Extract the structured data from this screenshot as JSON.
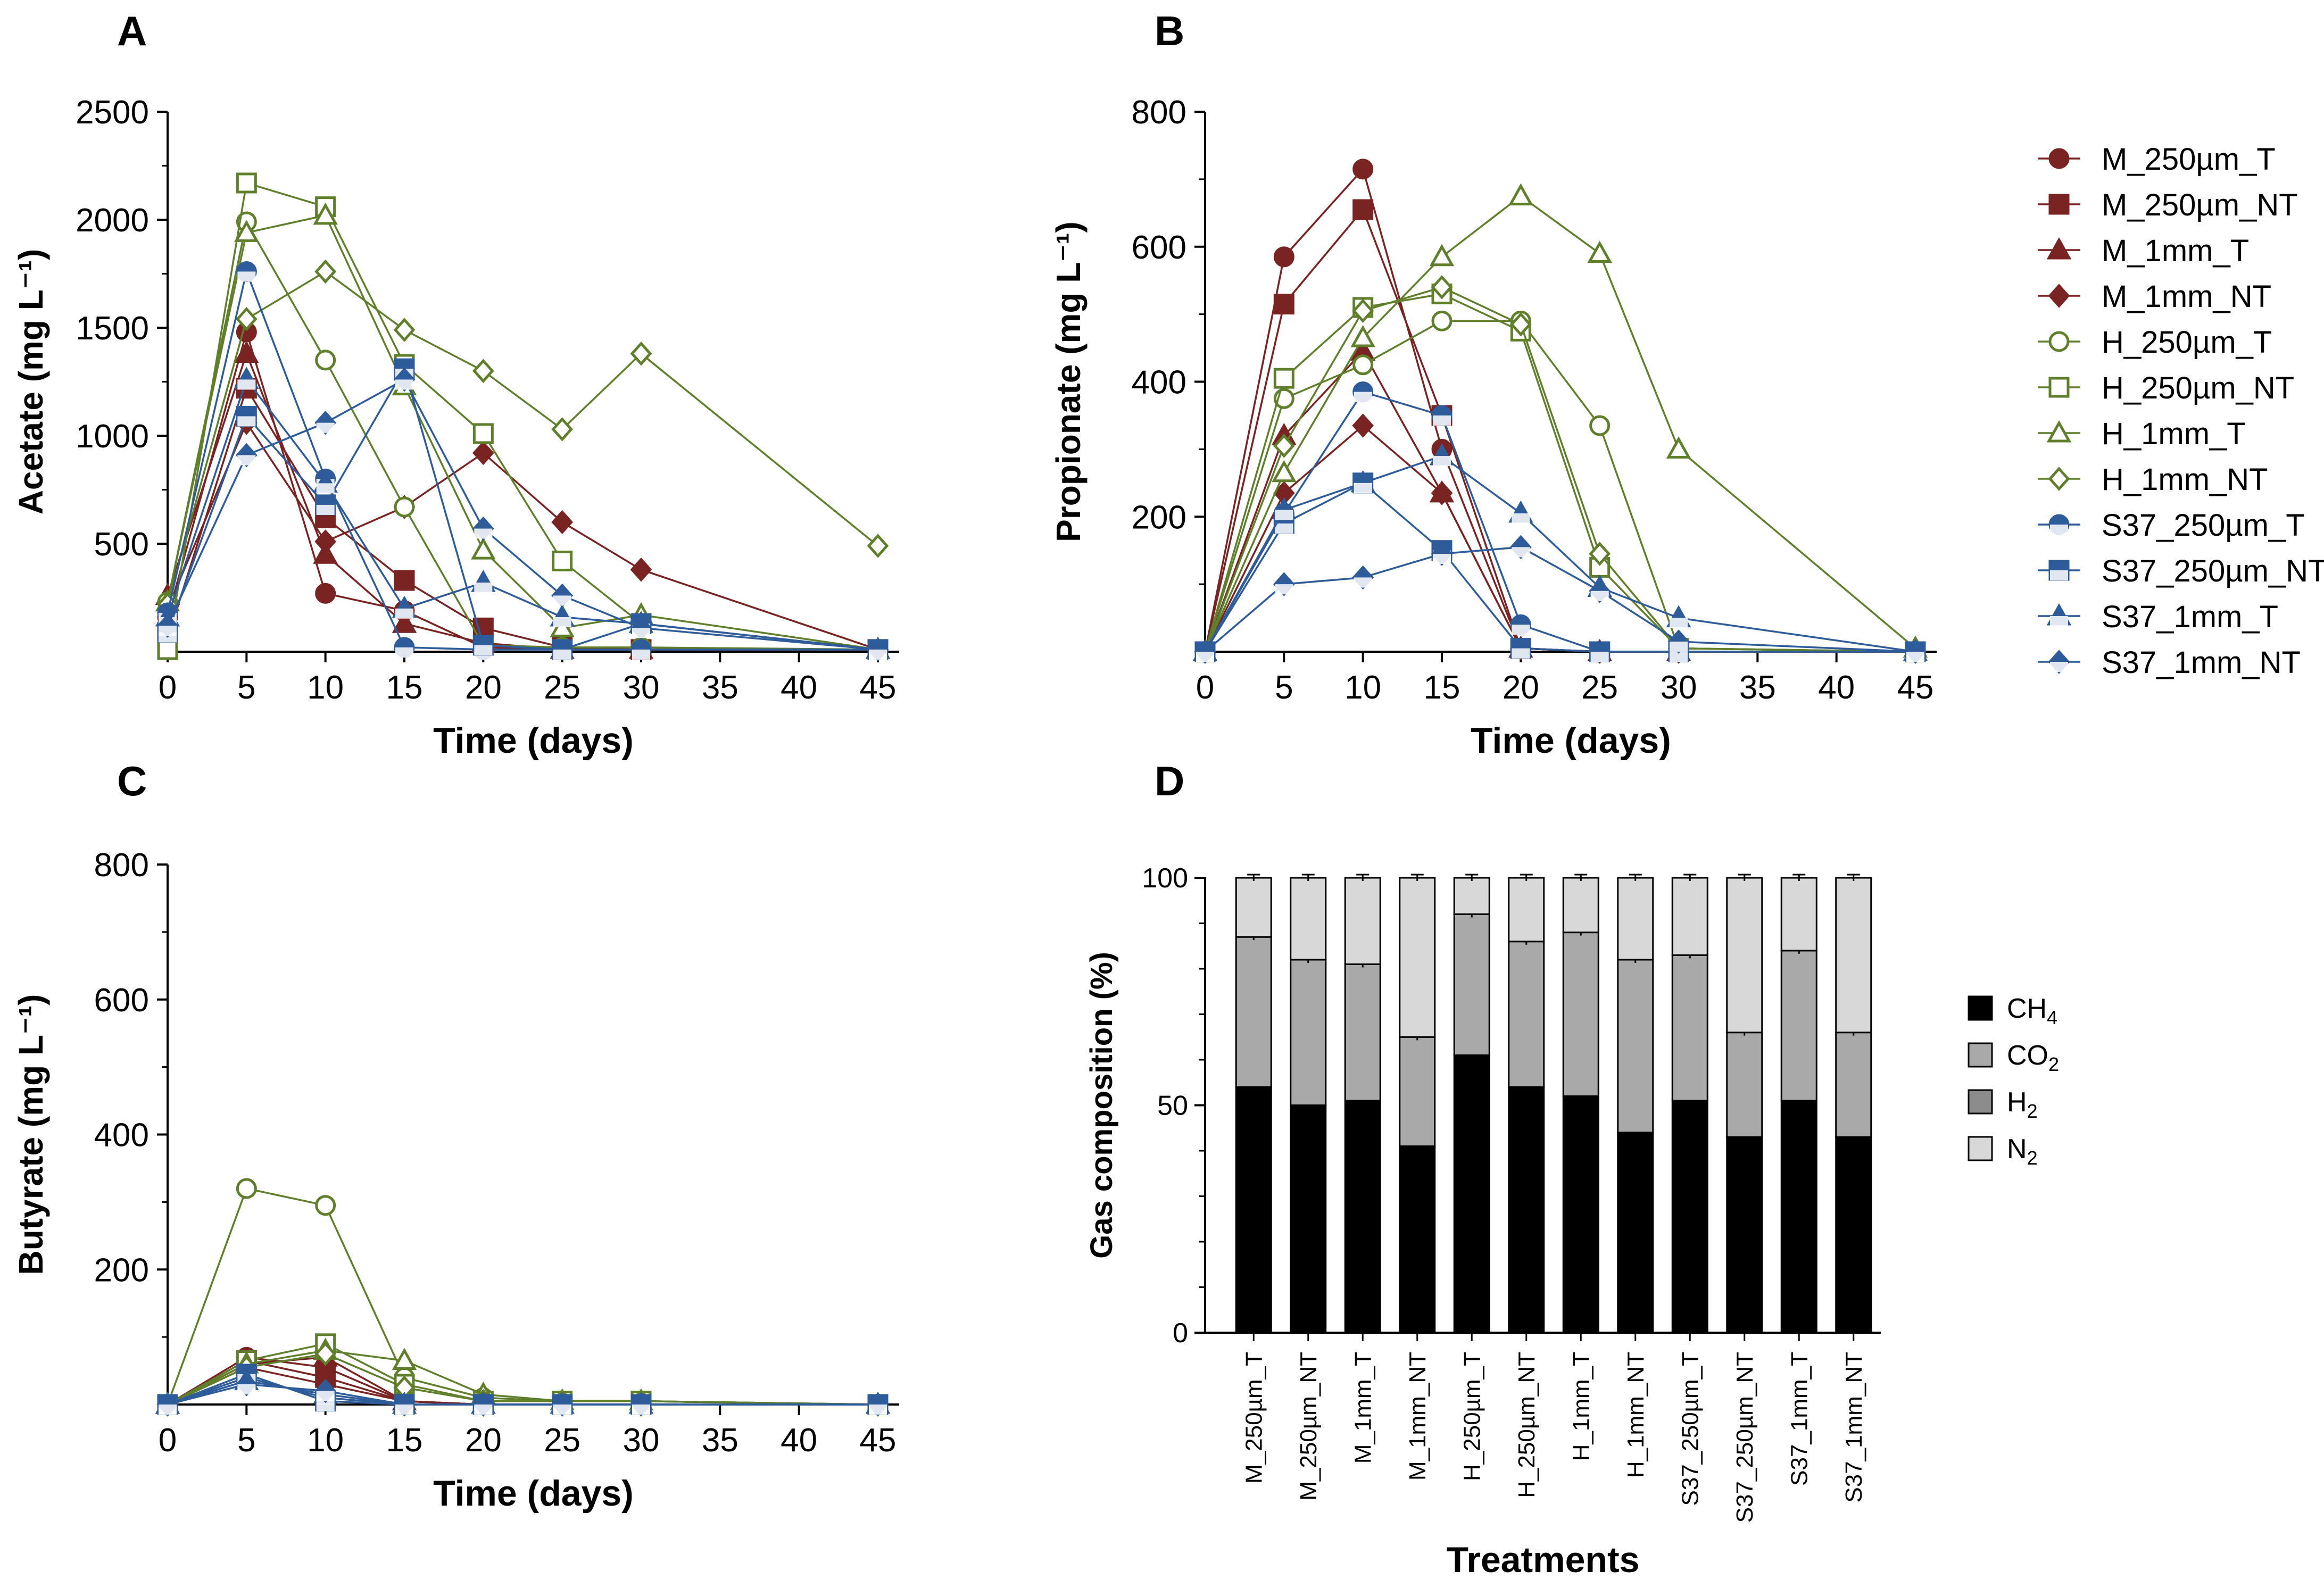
{
  "figure": {
    "panels": [
      "A",
      "B",
      "C",
      "D"
    ],
    "x_tick_labels": [
      "0",
      "5",
      "10",
      "15",
      "20",
      "25",
      "30",
      "35",
      "40",
      "45"
    ]
  },
  "series_styles": [
    {
      "name": "M_250µm_T",
      "color": "#7a2323",
      "marker": "circle",
      "filled": true
    },
    {
      "name": "M_250µm_NT",
      "color": "#7a2323",
      "marker": "square",
      "filled": true
    },
    {
      "name": "M_1mm_T",
      "color": "#7a2323",
      "marker": "triangle",
      "filled": true
    },
    {
      "name": "M_1mm_NT",
      "color": "#7a2323",
      "marker": "diamond",
      "filled": true
    },
    {
      "name": "H_250µm_T",
      "color": "#5f7f2a",
      "marker": "circle",
      "filled": false
    },
    {
      "name": "H_250µm_NT",
      "color": "#5f7f2a",
      "marker": "square",
      "filled": false
    },
    {
      "name": "H_1mm_T",
      "color": "#5f7f2a",
      "marker": "triangle",
      "filled": false
    },
    {
      "name": "H_1mm_NT",
      "color": "#5f7f2a",
      "marker": "diamond",
      "filled": false
    },
    {
      "name": "S37_250µm_T",
      "color": "#2e5c9a",
      "marker": "circle",
      "filled": "half"
    },
    {
      "name": "S37_250µm_NT",
      "color": "#2e5c9a",
      "marker": "square",
      "filled": "half"
    },
    {
      "name": "S37_1mm_T",
      "color": "#2e5c9a",
      "marker": "triangle",
      "filled": "half"
    },
    {
      "name": "S37_1mm_NT",
      "color": "#2e5c9a",
      "marker": "diamond",
      "filled": "half"
    }
  ],
  "chart_data": [
    {
      "panel": "A",
      "type": "line",
      "title": "",
      "xlabel": "Time (days)",
      "ylabel": "Acetate (mg L⁻¹)",
      "xlim": [
        0,
        45
      ],
      "ylim": [
        0,
        2500
      ],
      "yticks": [
        500,
        1000,
        1500,
        2000,
        2500
      ],
      "x": [
        0,
        5,
        10,
        15,
        20,
        25,
        30,
        45
      ],
      "series": [
        {
          "name": "M_250µm_T",
          "values": [
            160,
            1480,
            270,
            190,
            20,
            10,
            10,
            10
          ]
        },
        {
          "name": "M_250µm_NT",
          "values": [
            60,
            1220,
            620,
            330,
            110,
            20,
            10,
            10
          ]
        },
        {
          "name": "M_1mm_T",
          "values": [
            260,
            1380,
            450,
            130,
            40,
            10,
            10,
            10
          ]
        },
        {
          "name": "M_1mm_NT",
          "values": [
            200,
            1060,
            510,
            670,
            920,
            600,
            380,
            10
          ]
        },
        {
          "name": "H_250µm_T",
          "values": [
            230,
            1990,
            1350,
            670,
            30,
            20,
            20,
            10
          ]
        },
        {
          "name": "H_250µm_NT",
          "values": [
            10,
            2170,
            2060,
            1330,
            1010,
            420,
            130,
            10
          ]
        },
        {
          "name": "H_1mm_T",
          "values": [
            230,
            1940,
            2020,
            1230,
            470,
            110,
            170,
            10
          ]
        },
        {
          "name": "H_1mm_NT",
          "values": [
            220,
            1540,
            1760,
            1490,
            1300,
            1030,
            1380,
            490
          ]
        },
        {
          "name": "S37_250µm_T",
          "values": [
            180,
            1760,
            800,
            20,
            10,
            10,
            10,
            10
          ]
        },
        {
          "name": "S37_250µm_NT",
          "values": [
            90,
            1090,
            680,
            1310,
            30,
            10,
            130,
            10
          ]
        },
        {
          "name": "S37_1mm_T",
          "values": [
            160,
            1260,
            780,
            200,
            320,
            160,
            130,
            10
          ]
        },
        {
          "name": "S37_1mm_NT",
          "values": [
            120,
            910,
            1060,
            1260,
            570,
            260,
            110,
            10
          ]
        }
      ]
    },
    {
      "panel": "B",
      "type": "line",
      "title": "",
      "xlabel": "Time (days)",
      "ylabel": "Propionate (mg L⁻¹)",
      "xlim": [
        0,
        45
      ],
      "ylim": [
        0,
        800
      ],
      "yticks": [
        200,
        400,
        600,
        800
      ],
      "x": [
        0,
        5,
        10,
        15,
        20,
        25,
        30,
        45
      ],
      "series": [
        {
          "name": "M_250µm_T",
          "values": [
            0,
            585,
            715,
            300,
            5,
            0,
            0,
            0
          ]
        },
        {
          "name": "M_250µm_NT",
          "values": [
            0,
            515,
            655,
            350,
            5,
            0,
            0,
            0
          ]
        },
        {
          "name": "M_1mm_T",
          "values": [
            0,
            320,
            445,
            235,
            5,
            0,
            0,
            0
          ]
        },
        {
          "name": "M_1mm_NT",
          "values": [
            0,
            235,
            335,
            235,
            5,
            0,
            0,
            0
          ]
        },
        {
          "name": "H_250µm_T",
          "values": [
            0,
            375,
            425,
            490,
            490,
            335,
            5,
            0
          ]
        },
        {
          "name": "H_250µm_NT",
          "values": [
            0,
            405,
            510,
            530,
            475,
            125,
            5,
            0
          ]
        },
        {
          "name": "H_1mm_T",
          "values": [
            0,
            265,
            465,
            585,
            675,
            590,
            300,
            5
          ]
        },
        {
          "name": "H_1mm_NT",
          "values": [
            0,
            305,
            505,
            540,
            485,
            145,
            5,
            0
          ]
        },
        {
          "name": "S37_250µm_T",
          "values": [
            0,
            205,
            385,
            350,
            40,
            0,
            0,
            0
          ]
        },
        {
          "name": "S37_250µm_NT",
          "values": [
            0,
            190,
            250,
            150,
            5,
            0,
            0,
            0
          ]
        },
        {
          "name": "S37_1mm_T",
          "values": [
            0,
            210,
            250,
            290,
            205,
            95,
            50,
            0
          ]
        },
        {
          "name": "S37_1mm_NT",
          "values": [
            0,
            100,
            110,
            145,
            155,
            90,
            15,
            0
          ]
        }
      ]
    },
    {
      "panel": "C",
      "type": "line",
      "title": "",
      "xlabel": "Time (days)",
      "ylabel": "Butyrate (mg L⁻¹)",
      "xlim": [
        0,
        45
      ],
      "ylim": [
        0,
        800
      ],
      "yticks": [
        200,
        400,
        600,
        800
      ],
      "x": [
        0,
        5,
        10,
        15,
        20,
        25,
        30,
        45
      ],
      "series": [
        {
          "name": "M_250µm_T",
          "values": [
            0,
            70,
            55,
            5,
            0,
            0,
            0,
            0
          ]
        },
        {
          "name": "M_250µm_NT",
          "values": [
            0,
            65,
            40,
            5,
            0,
            0,
            0,
            0
          ]
        },
        {
          "name": "M_1mm_T",
          "values": [
            0,
            60,
            70,
            5,
            0,
            0,
            0,
            0
          ]
        },
        {
          "name": "M_1mm_NT",
          "values": [
            0,
            55,
            30,
            5,
            0,
            0,
            0,
            0
          ]
        },
        {
          "name": "H_250µm_T",
          "values": [
            0,
            320,
            295,
            40,
            10,
            5,
            5,
            0
          ]
        },
        {
          "name": "H_250µm_NT",
          "values": [
            0,
            65,
            90,
            30,
            5,
            5,
            5,
            0
          ]
        },
        {
          "name": "H_1mm_T",
          "values": [
            0,
            60,
            80,
            65,
            15,
            5,
            5,
            0
          ]
        },
        {
          "name": "H_1mm_NT",
          "values": [
            0,
            55,
            75,
            25,
            5,
            5,
            5,
            0
          ]
        },
        {
          "name": "S37_250µm_T",
          "values": [
            0,
            40,
            10,
            0,
            0,
            0,
            0,
            0
          ]
        },
        {
          "name": "S37_250µm_NT",
          "values": [
            0,
            45,
            5,
            0,
            0,
            0,
            0,
            0
          ]
        },
        {
          "name": "S37_1mm_T",
          "values": [
            0,
            35,
            15,
            0,
            0,
            0,
            0,
            0
          ]
        },
        {
          "name": "S37_1mm_NT",
          "values": [
            0,
            30,
            20,
            0,
            0,
            0,
            0,
            0
          ]
        }
      ]
    },
    {
      "panel": "D",
      "type": "bar",
      "stacked": true,
      "title": "",
      "xlabel": "Treatments",
      "ylabel": "Gas composition (%)",
      "ylim": [
        0,
        100
      ],
      "yticks": [
        0,
        50,
        100
      ],
      "categories": [
        "M_250µm_T",
        "M_250µm_NT",
        "M_1mm_T",
        "M_1mm_NT",
        "H_250µm_T",
        "H_250µm_NT",
        "H_1mm_T",
        "H_1mm_NT",
        "S37_250µm_T",
        "S37_250µm_NT",
        "S37_1mm_T",
        "S37_1mm_NT"
      ],
      "series": [
        {
          "name": "CH4",
          "label_main": "CH",
          "label_sub": "4",
          "color": "#000000",
          "values": [
            54,
            50,
            51,
            41,
            61,
            54,
            52,
            44,
            51,
            43,
            51,
            43
          ]
        },
        {
          "name": "CO2",
          "label_main": "CO",
          "label_sub": "2",
          "color": "#a9a9a9",
          "values": [
            33,
            32,
            30,
            24,
            31,
            32,
            36,
            38,
            32,
            23,
            33,
            23
          ]
        },
        {
          "name": "H2",
          "label_main": "H",
          "label_sub": "2",
          "color": "#8c8c8c",
          "values": [
            0,
            0,
            0,
            0,
            0,
            0,
            0,
            0,
            0,
            0,
            0,
            0
          ]
        },
        {
          "name": "N2",
          "label_main": "N",
          "label_sub": "2",
          "color": "#d8d8d8",
          "values": [
            13,
            18,
            19,
            35,
            8,
            14,
            12,
            18,
            17,
            34,
            16,
            34
          ]
        }
      ]
    }
  ]
}
